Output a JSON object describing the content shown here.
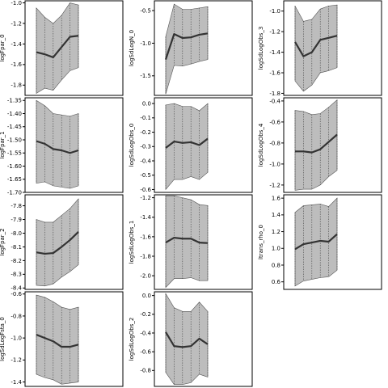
{
  "chart_data": [
    {
      "type": "area",
      "ylabel": "logFpar_0",
      "ylim": [
        -1.9,
        -0.98
      ],
      "yticks": [
        -1.0,
        -1.2,
        -1.4,
        -1.6,
        -1.8
      ],
      "tick_labels": [
        "-1.0",
        "-1.2",
        "-1.4",
        "-1.6",
        "-1.8"
      ],
      "x": [
        1,
        2,
        3,
        4,
        5,
        6
      ],
      "lower": [
        -1.88,
        -1.83,
        -1.85,
        -1.75,
        -1.66,
        -1.63
      ],
      "upper": [
        -1.05,
        -1.14,
        -1.2,
        -1.12,
        -1.0,
        -1.02
      ],
      "median": [
        -1.48,
        -1.5,
        -1.53,
        -1.43,
        -1.33,
        -1.32
      ]
    },
    {
      "type": "area",
      "ylabel": "logSdLogN_0",
      "ylim": [
        -1.8,
        -0.35
      ],
      "yticks": [
        -0.5,
        -1.0,
        -1.5
      ],
      "tick_labels": [
        "-0.5",
        "-1.0",
        "-1.5"
      ],
      "x": [
        1,
        2,
        3,
        4,
        5,
        6
      ],
      "lower": [
        -1.78,
        -1.34,
        -1.35,
        -1.32,
        -1.28,
        -1.25
      ],
      "upper": [
        -0.9,
        -0.4,
        -0.48,
        -0.48,
        -0.46,
        -0.44
      ],
      "median": [
        -1.25,
        -0.86,
        -0.92,
        -0.91,
        -0.87,
        -0.85
      ]
    },
    {
      "type": "area",
      "ylabel": "logSdLogObs_3",
      "ylim": [
        -1.82,
        -0.9
      ],
      "yticks": [
        -1.0,
        -1.2,
        -1.4,
        -1.6,
        -1.8
      ],
      "tick_labels": [
        "-1.0",
        "-1.2",
        "-1.4",
        "-1.6",
        "-1.8"
      ],
      "x": [
        1,
        2,
        3,
        4,
        5,
        6
      ],
      "lower": [
        -1.68,
        -1.78,
        -1.72,
        -1.6,
        -1.58,
        -1.55
      ],
      "upper": [
        -0.95,
        -1.1,
        -1.08,
        -0.98,
        -0.95,
        -0.94
      ],
      "median": [
        -1.3,
        -1.44,
        -1.4,
        -1.28,
        -1.26,
        -1.24
      ]
    },
    {
      "type": "area",
      "ylabel": "logFpar_1",
      "ylim": [
        -1.7,
        -1.34
      ],
      "yticks": [
        -1.35,
        -1.4,
        -1.45,
        -1.5,
        -1.55,
        -1.6,
        -1.65,
        -1.7
      ],
      "tick_labels": [
        "-1.35",
        "-1.40",
        "-1.45",
        "-1.50",
        "-1.55",
        "-1.60",
        "-1.65",
        "-1.70"
      ],
      "x": [
        1,
        2,
        3,
        4,
        5,
        6
      ],
      "lower": [
        -1.665,
        -1.66,
        -1.675,
        -1.68,
        -1.685,
        -1.675
      ],
      "upper": [
        -1.35,
        -1.37,
        -1.4,
        -1.405,
        -1.41,
        -1.4
      ],
      "median": [
        -1.505,
        -1.515,
        -1.535,
        -1.54,
        -1.55,
        -1.54
      ]
    },
    {
      "type": "area",
      "ylabel": "logSdLogObs_0",
      "ylim": [
        -0.62,
        0.04
      ],
      "yticks": [
        0.0,
        -0.1,
        -0.2,
        -0.3,
        -0.4,
        -0.5,
        -0.6
      ],
      "tick_labels": [
        "0.0",
        "-0.1",
        "-0.2",
        "-0.3",
        "-0.4",
        "-0.5",
        "-0.6"
      ],
      "x": [
        1,
        2,
        3,
        4,
        5,
        6
      ],
      "lower": [
        -0.6,
        -0.53,
        -0.53,
        -0.51,
        -0.53,
        -0.48
      ],
      "upper": [
        -0.01,
        0.0,
        -0.02,
        -0.02,
        -0.05,
        0.0
      ],
      "median": [
        -0.31,
        -0.265,
        -0.275,
        -0.27,
        -0.29,
        -0.245
      ]
    },
    {
      "type": "area",
      "ylabel": "logSdLogObs_4",
      "ylim": [
        -1.27,
        -0.37
      ],
      "yticks": [
        -0.4,
        -0.6,
        -0.8,
        -1.0,
        -1.2
      ],
      "tick_labels": [
        "-0.4",
        "-0.6",
        "-0.8",
        "-1.0",
        "-1.2"
      ],
      "x": [
        1,
        2,
        3,
        4,
        5,
        6
      ],
      "lower": [
        -1.25,
        -1.24,
        -1.24,
        -1.2,
        -1.12,
        -1.06
      ],
      "upper": [
        -0.49,
        -0.5,
        -0.53,
        -0.52,
        -0.46,
        -0.39
      ],
      "median": [
        -0.88,
        -0.88,
        -0.89,
        -0.86,
        -0.79,
        -0.72
      ]
    },
    {
      "type": "area",
      "ylabel": "logFpar_2",
      "ylim": [
        -8.41,
        -7.72
      ],
      "yticks": [
        -7.8,
        -7.9,
        -8.0,
        -8.1,
        -8.2,
        -8.3,
        -8.4
      ],
      "tick_labels": [
        "-7.8",
        "-7.9",
        "-8.0",
        "-8.1",
        "-8.2",
        "-8.3",
        "-8.4"
      ],
      "x": [
        1,
        2,
        3,
        4,
        5,
        6
      ],
      "lower": [
        -8.38,
        -8.385,
        -8.37,
        -8.32,
        -8.28,
        -8.23
      ],
      "upper": [
        -7.9,
        -7.92,
        -7.92,
        -7.87,
        -7.82,
        -7.75
      ],
      "median": [
        -8.14,
        -8.15,
        -8.145,
        -8.1,
        -8.05,
        -7.99
      ]
    },
    {
      "type": "area",
      "ylabel": "logSdLogObs_1",
      "ylim": [
        -2.14,
        -1.17
      ],
      "yticks": [
        -1.2,
        -1.4,
        -1.6,
        -1.8,
        -2.0
      ],
      "tick_labels": [
        "-1.2",
        "-1.4",
        "-1.6",
        "-1.8",
        "-2.0"
      ],
      "x": [
        1,
        2,
        3,
        4,
        5,
        6
      ],
      "lower": [
        -2.12,
        -2.03,
        -2.03,
        -2.02,
        -2.05,
        -2.05
      ],
      "upper": [
        -1.18,
        -1.18,
        -1.2,
        -1.22,
        -1.27,
        -1.28
      ],
      "median": [
        -1.66,
        -1.61,
        -1.62,
        -1.62,
        -1.66,
        -1.665
      ]
    },
    {
      "type": "area",
      "ylabel": "ltrans_rho_0",
      "ylim": [
        0.51,
        1.64
      ],
      "yticks": [
        0.6,
        0.8,
        1.0,
        1.2,
        1.4,
        1.6
      ],
      "tick_labels": [
        "0.6",
        "0.8",
        "1.0",
        "1.2",
        "1.4",
        "1.6"
      ],
      "x": [
        1,
        2,
        3,
        4,
        5,
        6
      ],
      "lower": [
        0.55,
        0.61,
        0.63,
        0.65,
        0.66,
        0.74
      ],
      "upper": [
        1.43,
        1.51,
        1.52,
        1.53,
        1.5,
        1.6
      ],
      "median": [
        0.99,
        1.05,
        1.07,
        1.09,
        1.08,
        1.17
      ]
    },
    {
      "type": "area",
      "ylabel": "logSdLogFsta_0",
      "ylim": [
        -1.44,
        -0.58
      ],
      "yticks": [
        -0.6,
        -0.8,
        -1.0,
        -1.2,
        -1.4
      ],
      "tick_labels": [
        "-0.6",
        "-0.8",
        "-1.0",
        "-1.2",
        "-1.4"
      ],
      "x": [
        1,
        2,
        3,
        4,
        5,
        6
      ],
      "lower": [
        -1.33,
        -1.36,
        -1.38,
        -1.42,
        -1.41,
        -1.4
      ],
      "upper": [
        -0.61,
        -0.63,
        -0.67,
        -0.72,
        -0.74,
        -0.72
      ],
      "median": [
        -0.97,
        -1.0,
        -1.03,
        -1.08,
        -1.08,
        -1.06
      ]
    },
    {
      "type": "area",
      "ylabel": "logSdLogObs_2",
      "ylim": [
        -0.97,
        0.04
      ],
      "yticks": [
        0.0,
        -0.2,
        -0.4,
        -0.6,
        -0.8
      ],
      "tick_labels": [
        "0.0",
        "-0.2",
        "-0.4",
        "-0.6",
        "-0.8"
      ],
      "x": [
        1,
        2,
        3,
        4,
        5,
        6
      ],
      "lower": [
        -0.82,
        -0.95,
        -0.95,
        -0.93,
        -0.84,
        -0.87
      ],
      "upper": [
        0.02,
        -0.13,
        -0.17,
        -0.17,
        -0.07,
        -0.17
      ],
      "median": [
        -0.39,
        -0.54,
        -0.55,
        -0.54,
        -0.46,
        -0.52
      ]
    }
  ]
}
